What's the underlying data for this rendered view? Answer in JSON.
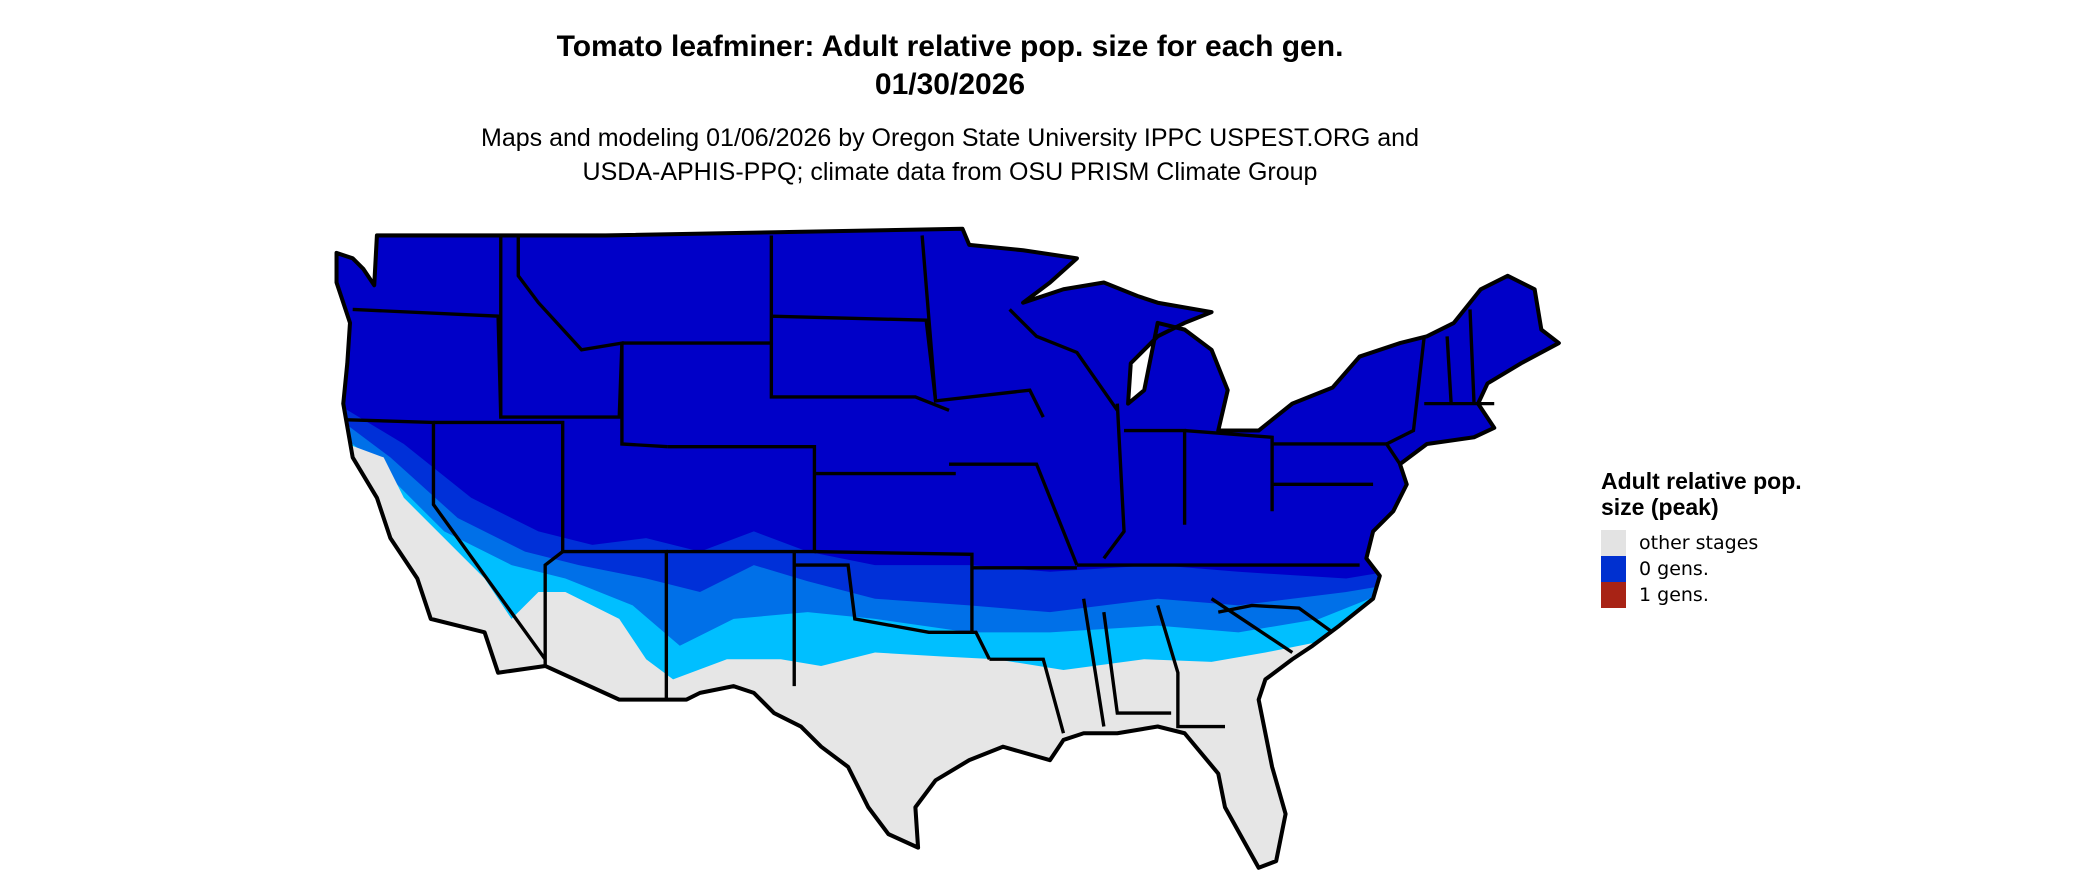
{
  "title": {
    "line1": "Tomato leafminer: Adult relative pop. size for each gen.",
    "line2": "01/30/2026"
  },
  "subtitle": {
    "line1": "Maps and modeling 01/06/2026 by Oregon State University IPPC USPEST.ORG and",
    "line2": "USDA-APHIS-PPQ; climate data from OSU PRISM Climate Group"
  },
  "map": {
    "region": "Contiguous United States with state borders",
    "colors": {
      "other_stages": "#e6e6e6",
      "zero_gens_dark": "#0000c8",
      "zero_gens_mid": "#0030d8",
      "zero_gens_light": "#0070e8",
      "zero_gens_cyan": "#00bfff",
      "border": "#000000"
    }
  },
  "legend": {
    "title": "Adult relative pop. size (peak)",
    "items": [
      {
        "label": "other stages",
        "color": "#e3e3e3"
      },
      {
        "label": "0 gens.",
        "color": "#0030d0"
      },
      {
        "label": "1 gens.",
        "color": "#a82315"
      }
    ]
  }
}
